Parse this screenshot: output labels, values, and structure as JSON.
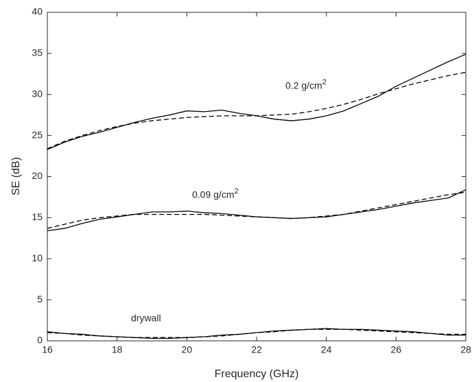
{
  "chart_data": {
    "type": "line",
    "x_label": "Frequency (GHz)",
    "y_label": "SE (dB)",
    "x": [
      16,
      16.5,
      17,
      17.5,
      18,
      18.5,
      19,
      19.5,
      20,
      20.5,
      21,
      21.5,
      22,
      22.5,
      23,
      23.5,
      24,
      24.5,
      25,
      25.5,
      26,
      26.5,
      27,
      27.5,
      28
    ],
    "series": [
      {
        "color": "#000000",
        "dash": false,
        "values": [
          23.3,
          24.2,
          24.9,
          25.4,
          26.0,
          26.6,
          27.1,
          27.5,
          28.0,
          27.9,
          28.1,
          27.7,
          27.4,
          27.0,
          26.8,
          27.0,
          27.4,
          28.0,
          28.9,
          29.8,
          31.0,
          32.0,
          33.0,
          34.0,
          34.9
        ]
      },
      {
        "color": "#000000",
        "dash": true,
        "values": [
          23.4,
          24.3,
          25.0,
          25.6,
          26.1,
          26.5,
          26.8,
          27.0,
          27.2,
          27.3,
          27.4,
          27.4,
          27.4,
          27.5,
          27.6,
          27.9,
          28.3,
          28.8,
          29.4,
          30.1,
          30.7,
          31.3,
          31.8,
          32.3,
          32.7
        ]
      },
      {
        "color": "#000000",
        "dash": false,
        "values": [
          13.4,
          13.7,
          14.3,
          14.8,
          15.1,
          15.4,
          15.7,
          15.7,
          15.8,
          15.6,
          15.5,
          15.3,
          15.1,
          15.0,
          14.9,
          15.0,
          15.1,
          15.4,
          15.7,
          16.0,
          16.4,
          16.8,
          17.1,
          17.4,
          18.4
        ]
      },
      {
        "color": "#000000",
        "dash": true,
        "values": [
          13.7,
          14.2,
          14.7,
          15.0,
          15.2,
          15.4,
          15.4,
          15.4,
          15.4,
          15.4,
          15.3,
          15.2,
          15.1,
          15.0,
          14.9,
          15.0,
          15.2,
          15.4,
          15.8,
          16.2,
          16.6,
          17.0,
          17.4,
          17.8,
          18.1
        ]
      },
      {
        "color": "#000000",
        "dash": false,
        "values": [
          1.1,
          0.9,
          0.8,
          0.6,
          0.5,
          0.4,
          0.3,
          0.3,
          0.4,
          0.5,
          0.7,
          0.8,
          1.0,
          1.2,
          1.3,
          1.4,
          1.5,
          1.4,
          1.4,
          1.3,
          1.2,
          1.1,
          0.9,
          0.7,
          0.7
        ]
      },
      {
        "color": "#000000",
        "dash": true,
        "values": [
          1.0,
          0.9,
          0.7,
          0.6,
          0.5,
          0.4,
          0.4,
          0.4,
          0.4,
          0.5,
          0.6,
          0.8,
          1.0,
          1.1,
          1.3,
          1.4,
          1.4,
          1.4,
          1.3,
          1.2,
          1.1,
          1.0,
          0.9,
          0.8,
          0.8
        ]
      }
    ],
    "annotations": [
      {
        "text": "0.2 g/cm",
        "sup": "2"
      },
      {
        "text": "0.09 g/cm",
        "sup": "2"
      },
      {
        "text": "drywall"
      }
    ],
    "xlim": [
      16,
      28
    ],
    "xticks": [
      16,
      18,
      20,
      22,
      24,
      26,
      28
    ],
    "ylim": [
      0,
      40
    ],
    "yticks": [
      0,
      5,
      10,
      15,
      20,
      25,
      30,
      35,
      40
    ],
    "grid": false
  }
}
